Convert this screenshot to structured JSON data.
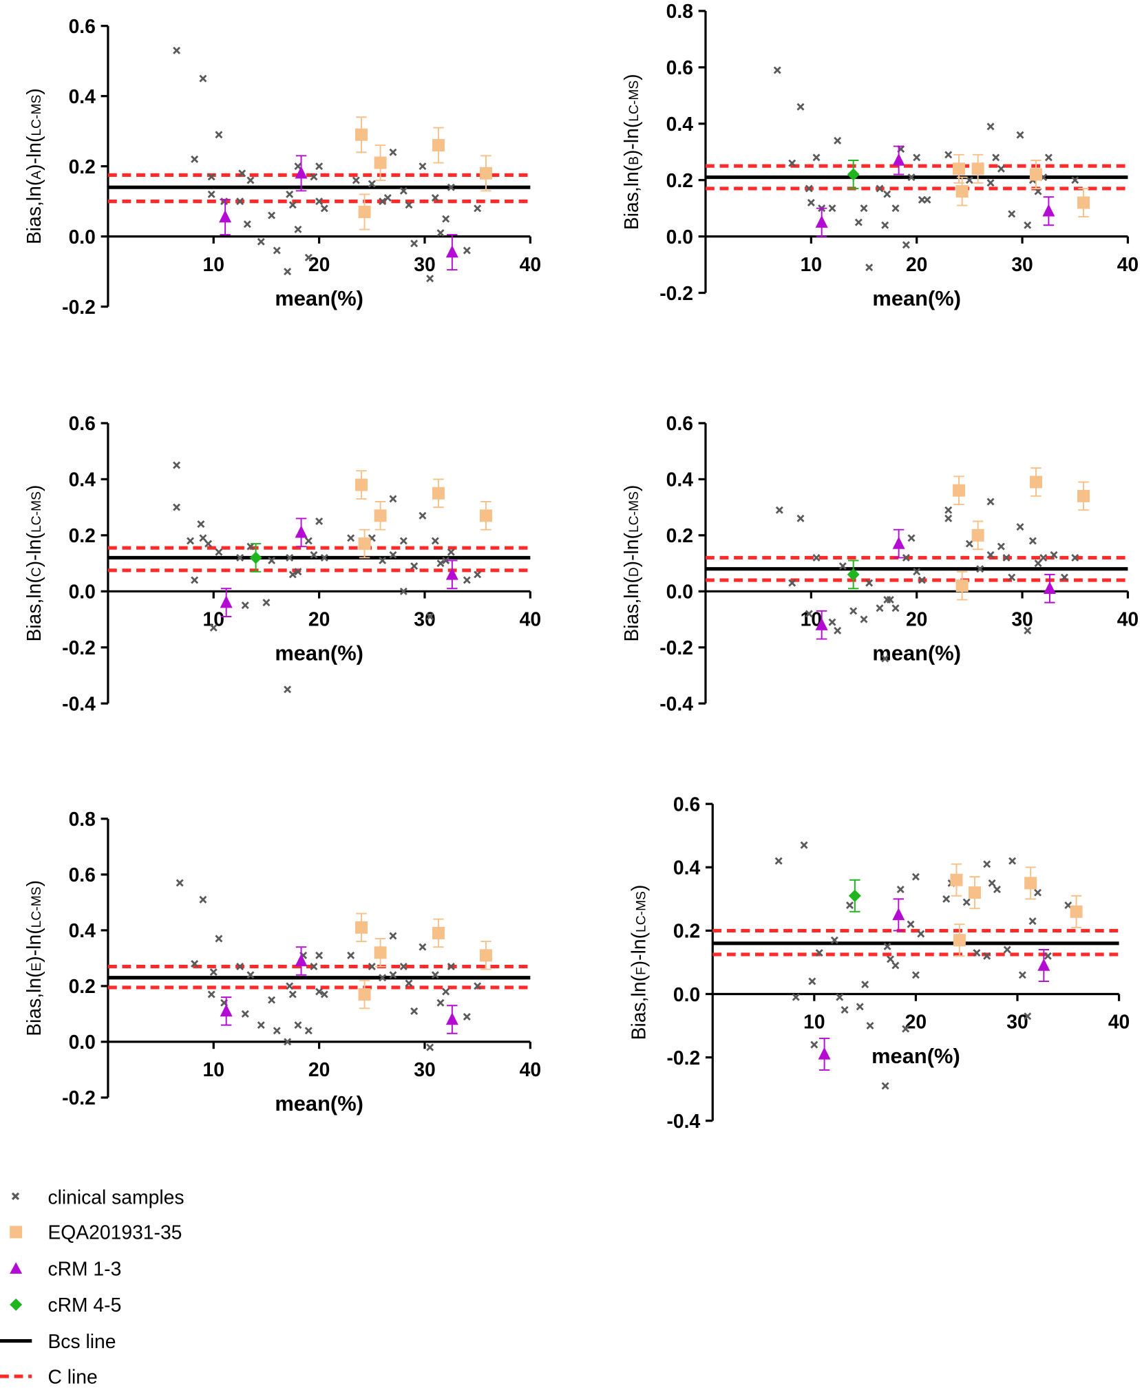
{
  "colors": {
    "clinical": "#5a5a5a",
    "eqa": "#f7c089",
    "crm13": "#b40bd4",
    "crm45": "#1fb51f",
    "bcs": "#000000",
    "c": "#ff2a2a"
  },
  "legend": [
    {
      "label": "clinical samples",
      "marker": "x"
    },
    {
      "label": "EQA201931-35",
      "marker": "square"
    },
    {
      "label": "cRM 1-3",
      "marker": "triangle"
    },
    {
      "label": "cRM 4-5",
      "marker": "diamond"
    },
    {
      "label": "Bcs line",
      "marker": "solid-line"
    },
    {
      "label": "C line",
      "marker": "dashed-line"
    }
  ],
  "chart_data": [
    {
      "type": "scatter",
      "panel": "A",
      "xlabel": "mean(%)",
      "ylabel_parts": [
        "Bias,ln(",
        "A",
        ")-ln(",
        "LC-MS",
        ")"
      ],
      "xlim": [
        0,
        40
      ],
      "ylim": [
        -0.2,
        0.6
      ],
      "xticks": [
        "10",
        "20",
        "30",
        "40"
      ],
      "yticks": [
        "0.6",
        "0.4",
        "0.2",
        "0.0",
        "-0.2"
      ],
      "bcs": 0.14,
      "c_lines": [
        0.175,
        0.1
      ],
      "error": 0.05,
      "clinical": [
        [
          6.5,
          0.53
        ],
        [
          8.2,
          0.22
        ],
        [
          9,
          0.45
        ],
        [
          9.8,
          0.17
        ],
        [
          10.5,
          0.29
        ],
        [
          9.8,
          0.12
        ],
        [
          11,
          0.1
        ],
        [
          12.5,
          0.1
        ],
        [
          12.7,
          0.18
        ],
        [
          13.2,
          0.035
        ],
        [
          13.5,
          0.16
        ],
        [
          14.5,
          -0.015
        ],
        [
          15.5,
          0.06
        ],
        [
          16,
          -0.04
        ],
        [
          17,
          -0.1
        ],
        [
          17.2,
          0.12
        ],
        [
          17.5,
          0.09
        ],
        [
          18,
          0.2
        ],
        [
          18,
          0.02
        ],
        [
          19,
          -0.06
        ],
        [
          19.5,
          0.17
        ],
        [
          20,
          0.2
        ],
        [
          20,
          0.1
        ],
        [
          20.5,
          0.08
        ],
        [
          23.5,
          0.16
        ],
        [
          25,
          0.15
        ],
        [
          26,
          0.1
        ],
        [
          27,
          0.24
        ],
        [
          26.5,
          0.11
        ],
        [
          28,
          0.13
        ],
        [
          28.5,
          0.09
        ],
        [
          29,
          -0.02
        ],
        [
          29.8,
          0.2
        ],
        [
          30.5,
          -0.12
        ],
        [
          31,
          0.11
        ],
        [
          31.5,
          0.01
        ],
        [
          32,
          0.05
        ],
        [
          32.5,
          0.14
        ],
        [
          34,
          -0.04
        ],
        [
          35,
          0.08
        ]
      ],
      "eqa": [
        [
          24,
          0.29
        ],
        [
          24.3,
          0.07
        ],
        [
          25.8,
          0.21
        ],
        [
          31.3,
          0.26
        ],
        [
          35.8,
          0.18
        ]
      ],
      "crm13": [
        [
          11.1,
          0.055
        ],
        [
          18.3,
          0.18
        ],
        [
          32.6,
          -0.045
        ]
      ],
      "crm45": []
    },
    {
      "type": "scatter",
      "panel": "B",
      "xlabel": "mean(%)",
      "ylabel_parts": [
        "Bias,ln(",
        "B",
        ")-ln(",
        "LC-MS",
        ")"
      ],
      "xlim": [
        0,
        40
      ],
      "ylim": [
        -0.2,
        0.8
      ],
      "xticks": [
        "10",
        "20",
        "30",
        "40"
      ],
      "yticks": [
        "0.8",
        "0.6",
        "0.4",
        "0.2",
        "0.0",
        "-0.2"
      ],
      "bcs": 0.21,
      "c_lines": [
        0.25,
        0.17
      ],
      "error": 0.05,
      "clinical": [
        [
          6.8,
          0.59
        ],
        [
          8.2,
          0.26
        ],
        [
          9,
          0.46
        ],
        [
          9.8,
          0.17
        ],
        [
          10.5,
          0.28
        ],
        [
          10,
          0.12
        ],
        [
          11,
          0.1
        ],
        [
          12,
          0.1
        ],
        [
          12.5,
          0.34
        ],
        [
          14.5,
          0.05
        ],
        [
          15,
          0.1
        ],
        [
          15.5,
          -0.11
        ],
        [
          16.5,
          0.17
        ],
        [
          17,
          0.04
        ],
        [
          17.2,
          0.15
        ],
        [
          18,
          0.1
        ],
        [
          18.5,
          0.31
        ],
        [
          19,
          -0.03
        ],
        [
          19.5,
          0.21
        ],
        [
          20,
          0.28
        ],
        [
          20.5,
          0.13
        ],
        [
          21,
          0.13
        ],
        [
          23,
          0.29
        ],
        [
          25,
          0.2
        ],
        [
          26,
          0.25
        ],
        [
          27,
          0.39
        ],
        [
          27,
          0.19
        ],
        [
          27.5,
          0.28
        ],
        [
          28,
          0.24
        ],
        [
          29,
          0.08
        ],
        [
          29.8,
          0.36
        ],
        [
          30.5,
          0.04
        ],
        [
          31,
          0.2
        ],
        [
          31.5,
          0.16
        ],
        [
          32,
          0.21
        ],
        [
          32.5,
          0.28
        ],
        [
          35,
          0.2
        ]
      ],
      "eqa": [
        [
          24,
          0.24
        ],
        [
          24.3,
          0.16
        ],
        [
          25.8,
          0.24
        ],
        [
          31.3,
          0.22
        ],
        [
          35.8,
          0.12
        ]
      ],
      "crm13": [
        [
          11,
          0.05
        ],
        [
          18.3,
          0.27
        ],
        [
          32.5,
          0.09
        ]
      ],
      "crm45": [
        [
          14,
          0.22
        ]
      ]
    },
    {
      "type": "scatter",
      "panel": "C",
      "xlabel": "mean(%)",
      "ylabel_parts": [
        "Bias,ln(",
        "C",
        ")-ln(",
        "LC-MS",
        ")"
      ],
      "xlim": [
        0,
        40
      ],
      "ylim": [
        -0.4,
        0.6
      ],
      "xticks": [
        "10",
        "20",
        "30",
        "40"
      ],
      "yticks": [
        "0.6",
        "0.4",
        "0.2",
        "0.0",
        "-0.2",
        "-0.4"
      ],
      "bcs": 0.12,
      "c_lines": [
        0.155,
        0.075
      ],
      "error": 0.05,
      "clinical": [
        [
          6.5,
          0.45
        ],
        [
          6.5,
          0.3
        ],
        [
          7.8,
          0.18
        ],
        [
          8.2,
          0.04
        ],
        [
          8.8,
          0.24
        ],
        [
          9,
          0.19
        ],
        [
          9.5,
          0.17
        ],
        [
          10,
          -0.13
        ],
        [
          10.5,
          0.14
        ],
        [
          12.5,
          0.12
        ],
        [
          13,
          -0.05
        ],
        [
          13.5,
          0.16
        ],
        [
          15,
          -0.04
        ],
        [
          15.5,
          0.11
        ],
        [
          17,
          -0.35
        ],
        [
          17.2,
          0.12
        ],
        [
          17.5,
          0.06
        ],
        [
          18,
          0.07
        ],
        [
          19,
          0.18
        ],
        [
          19.5,
          0.13
        ],
        [
          20,
          0.25
        ],
        [
          20.5,
          0.12
        ],
        [
          23,
          0.19
        ],
        [
          25,
          0.19
        ],
        [
          26,
          0.11
        ],
        [
          27,
          0.33
        ],
        [
          27,
          0.13
        ],
        [
          28,
          0.18
        ],
        [
          28,
          0.0
        ],
        [
          29,
          0.09
        ],
        [
          29.8,
          0.27
        ],
        [
          30.5,
          -0.09
        ],
        [
          31,
          0.18
        ],
        [
          31.5,
          0.1
        ],
        [
          32,
          0.11
        ],
        [
          32.5,
          0.14
        ],
        [
          34,
          0.04
        ],
        [
          35,
          0.06
        ]
      ],
      "eqa": [
        [
          24,
          0.38
        ],
        [
          24.3,
          0.17
        ],
        [
          25.8,
          0.27
        ],
        [
          31.3,
          0.35
        ],
        [
          35.8,
          0.27
        ]
      ],
      "crm13": [
        [
          11.2,
          -0.04
        ],
        [
          18.3,
          0.21
        ],
        [
          32.6,
          0.06
        ]
      ],
      "crm45": [
        [
          14,
          0.12
        ]
      ]
    },
    {
      "type": "scatter",
      "panel": "D",
      "xlabel": "mean(%)",
      "ylabel_parts": [
        "Bias,ln(",
        "D",
        ")-ln(",
        "LC-MS",
        ")"
      ],
      "xlim": [
        0,
        40
      ],
      "ylim": [
        -0.4,
        0.6
      ],
      "xticks": [
        "10",
        "20",
        "30",
        "40"
      ],
      "yticks": [
        "0.6",
        "0.4",
        "0.2",
        "0.0",
        "-0.2",
        "-0.4"
      ],
      "bcs": 0.08,
      "c_lines": [
        0.12,
        0.04
      ],
      "error": 0.05,
      "clinical": [
        [
          7,
          0.29
        ],
        [
          8.2,
          0.03
        ],
        [
          9,
          0.26
        ],
        [
          9.8,
          -0.08
        ],
        [
          10.5,
          0.12
        ],
        [
          12,
          -0.11
        ],
        [
          12.5,
          -0.14
        ],
        [
          13,
          0.09
        ],
        [
          14,
          -0.07
        ],
        [
          15,
          -0.1
        ],
        [
          15.5,
          0.03
        ],
        [
          16.5,
          -0.06
        ],
        [
          17,
          -0.24
        ],
        [
          17.2,
          -0.03
        ],
        [
          17.5,
          -0.03
        ],
        [
          18,
          -0.06
        ],
        [
          19,
          0.12
        ],
        [
          19.5,
          0.19
        ],
        [
          20,
          0.07
        ],
        [
          20.5,
          0.04
        ],
        [
          23,
          0.29
        ],
        [
          23,
          0.26
        ],
        [
          25,
          0.17
        ],
        [
          26,
          0.08
        ],
        [
          27,
          0.32
        ],
        [
          27,
          0.13
        ],
        [
          28,
          0.16
        ],
        [
          28.5,
          0.12
        ],
        [
          29,
          0.05
        ],
        [
          29.8,
          0.23
        ],
        [
          30.5,
          -0.14
        ],
        [
          31,
          0.18
        ],
        [
          31.5,
          0.1
        ],
        [
          32,
          0.12
        ],
        [
          33,
          0.13
        ],
        [
          34,
          0.05
        ],
        [
          35,
          0.12
        ]
      ],
      "eqa": [
        [
          24,
          0.36
        ],
        [
          24.3,
          0.02
        ],
        [
          25.8,
          0.2
        ],
        [
          31.3,
          0.39
        ],
        [
          35.8,
          0.34
        ]
      ],
      "crm13": [
        [
          11,
          -0.12
        ],
        [
          18.3,
          0.17
        ],
        [
          32.6,
          0.01
        ]
      ],
      "crm45": [
        [
          14,
          0.06
        ]
      ]
    },
    {
      "type": "scatter",
      "panel": "E",
      "xlabel": "mean(%)",
      "ylabel_parts": [
        "Bias,ln(",
        "E",
        ")-ln(",
        "LC-MS",
        ")"
      ],
      "xlim": [
        0,
        40
      ],
      "ylim": [
        -0.2,
        0.8
      ],
      "xticks": [
        "10",
        "20",
        "30",
        "40"
      ],
      "yticks": [
        "0.8",
        "0.6",
        "0.4",
        "0.2",
        "0.0",
        "-0.2"
      ],
      "bcs": 0.23,
      "c_lines": [
        0.27,
        0.195
      ],
      "error": 0.05,
      "clinical": [
        [
          6.8,
          0.57
        ],
        [
          8.2,
          0.28
        ],
        [
          9,
          0.51
        ],
        [
          9.8,
          0.17
        ],
        [
          10.5,
          0.37
        ],
        [
          10,
          0.25
        ],
        [
          11,
          0.14
        ],
        [
          12.5,
          0.27
        ],
        [
          13,
          0.1
        ],
        [
          13.5,
          0.24
        ],
        [
          14.5,
          0.06
        ],
        [
          15.5,
          0.15
        ],
        [
          16,
          0.04
        ],
        [
          17,
          0.0
        ],
        [
          17.2,
          0.2
        ],
        [
          17.5,
          0.17
        ],
        [
          18,
          0.06
        ],
        [
          18.5,
          0.31
        ],
        [
          19,
          0.04
        ],
        [
          19.5,
          0.27
        ],
        [
          20,
          0.31
        ],
        [
          20,
          0.18
        ],
        [
          20.5,
          0.17
        ],
        [
          23,
          0.31
        ],
        [
          25,
          0.27
        ],
        [
          26,
          0.23
        ],
        [
          27,
          0.38
        ],
        [
          27,
          0.24
        ],
        [
          28,
          0.27
        ],
        [
          28.5,
          0.21
        ],
        [
          29,
          0.11
        ],
        [
          29.8,
          0.34
        ],
        [
          30.5,
          -0.02
        ],
        [
          31,
          0.24
        ],
        [
          31.5,
          0.14
        ],
        [
          32,
          0.18
        ],
        [
          32.5,
          0.27
        ],
        [
          34,
          0.09
        ],
        [
          35,
          0.2
        ]
      ],
      "eqa": [
        [
          24,
          0.41
        ],
        [
          24.3,
          0.17
        ],
        [
          25.8,
          0.32
        ],
        [
          31.3,
          0.39
        ],
        [
          35.8,
          0.31
        ]
      ],
      "crm13": [
        [
          11.2,
          0.11
        ],
        [
          18.3,
          0.29
        ],
        [
          32.6,
          0.08
        ]
      ],
      "crm45": []
    },
    {
      "type": "scatter",
      "panel": "F",
      "xlabel": "mean(%)",
      "ylabel_parts": [
        "Bias,ln(",
        "F",
        ")-ln(",
        "LC-MS",
        ")"
      ],
      "xlim": [
        0,
        40
      ],
      "ylim": [
        -0.4,
        0.6
      ],
      "xticks": [
        "10",
        "20",
        "30",
        "40"
      ],
      "yticks": [
        "0.6",
        "0.4",
        "0.2",
        "0.0",
        "-0.2",
        "-0.4"
      ],
      "bcs": 0.16,
      "c_lines": [
        0.2,
        0.125
      ],
      "error": 0.05,
      "clinical": [
        [
          6.5,
          0.42
        ],
        [
          8.2,
          -0.01
        ],
        [
          9,
          0.47
        ],
        [
          9.8,
          0.04
        ],
        [
          10.5,
          0.13
        ],
        [
          10,
          -0.16
        ],
        [
          12,
          0.17
        ],
        [
          12.5,
          -0.01
        ],
        [
          13,
          -0.05
        ],
        [
          13.5,
          0.28
        ],
        [
          14.5,
          -0.04
        ],
        [
          15,
          0.03
        ],
        [
          15.5,
          -0.1
        ],
        [
          17,
          -0.29
        ],
        [
          17.2,
          0.15
        ],
        [
          17.5,
          0.11
        ],
        [
          18,
          0.09
        ],
        [
          18.5,
          0.33
        ],
        [
          19,
          -0.11
        ],
        [
          19.5,
          0.22
        ],
        [
          20,
          0.37
        ],
        [
          20,
          0.06
        ],
        [
          20.5,
          0.19
        ],
        [
          23,
          0.3
        ],
        [
          23.5,
          0.35
        ],
        [
          25,
          0.29
        ],
        [
          26,
          0.13
        ],
        [
          27,
          0.41
        ],
        [
          27,
          0.12
        ],
        [
          27.5,
          0.35
        ],
        [
          28,
          0.33
        ],
        [
          29,
          0.14
        ],
        [
          29.5,
          0.42
        ],
        [
          30.5,
          0.06
        ],
        [
          31,
          -0.07
        ],
        [
          31.5,
          0.23
        ],
        [
          32,
          0.32
        ],
        [
          33,
          0.12
        ],
        [
          35,
          0.28
        ]
      ],
      "eqa": [
        [
          24,
          0.36
        ],
        [
          24.3,
          0.17
        ],
        [
          25.8,
          0.32
        ],
        [
          31.3,
          0.35
        ],
        [
          35.8,
          0.26
        ]
      ],
      "crm13": [
        [
          11,
          -0.19
        ],
        [
          18.3,
          0.25
        ],
        [
          32.6,
          0.09
        ]
      ],
      "crm45": [
        [
          14,
          0.31
        ]
      ]
    }
  ]
}
